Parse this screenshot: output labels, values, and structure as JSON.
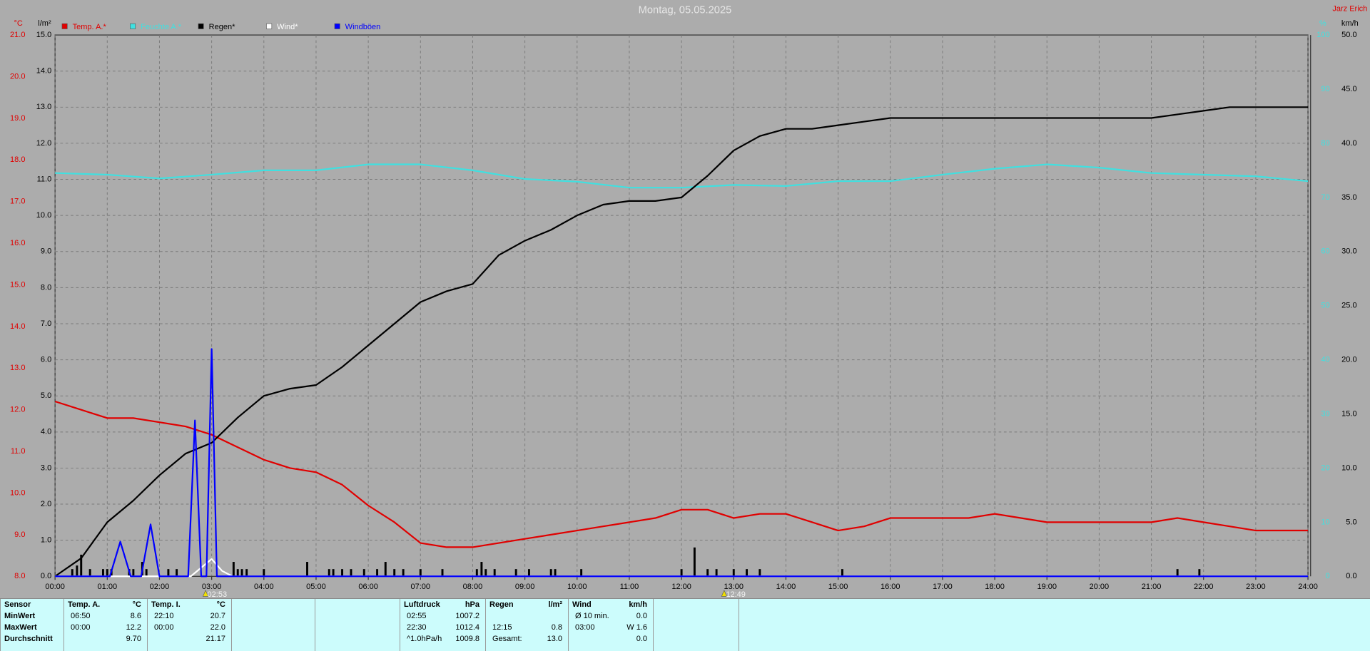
{
  "chart_data": {
    "type": "line",
    "title": "Montag, 05.05.2025",
    "author": "Jarz Erich",
    "xlim": [
      0,
      24
    ],
    "xticks": [
      {
        "value": 0,
        "label": "00:00"
      },
      {
        "value": 1,
        "label": "01:00"
      },
      {
        "value": 2,
        "label": "02:00"
      },
      {
        "value": 3,
        "label": "03:00"
      },
      {
        "value": 4,
        "label": "04:00"
      },
      {
        "value": 5,
        "label": "05:00"
      },
      {
        "value": 6,
        "label": "06:00"
      },
      {
        "value": 7,
        "label": "07:00"
      },
      {
        "value": 8,
        "label": "08:00"
      },
      {
        "value": 9,
        "label": "09:00"
      },
      {
        "value": 10,
        "label": "10:00"
      },
      {
        "value": 11,
        "label": "11:00"
      },
      {
        "value": 12,
        "label": "12:00"
      },
      {
        "value": 13,
        "label": "13:00"
      },
      {
        "value": 14,
        "label": "14:00"
      },
      {
        "value": 15,
        "label": "15:00"
      },
      {
        "value": 16,
        "label": "16:00"
      },
      {
        "value": 17,
        "label": "17:00"
      },
      {
        "value": 18,
        "label": "18:00"
      },
      {
        "value": 19,
        "label": "19:00"
      },
      {
        "value": 20,
        "label": "20:00"
      },
      {
        "value": 21,
        "label": "21:00"
      },
      {
        "value": 22,
        "label": "22:00"
      },
      {
        "value": 23,
        "label": "23:00"
      },
      {
        "value": 24,
        "label": "24:00"
      }
    ],
    "xgrid": true,
    "x": [
      0,
      0.5,
      1,
      1.5,
      2,
      2.5,
      3,
      3.5,
      4,
      4.5,
      5,
      5.5,
      6,
      6.5,
      7,
      7.5,
      8,
      8.5,
      9,
      9.5,
      10,
      10.5,
      11,
      11.5,
      12,
      12.5,
      13,
      13.5,
      14,
      14.5,
      15,
      15.5,
      16,
      16.5,
      17,
      17.5,
      18,
      18.5,
      19,
      19.5,
      20,
      20.5,
      21,
      21.5,
      22,
      22.5,
      23,
      23.5,
      24
    ],
    "axes": {
      "temp": {
        "label": "°C",
        "color": "#e00000",
        "side": "left",
        "lim": [
          8,
          21
        ],
        "ticks": [
          {
            "value": 8,
            "label": "8.0"
          },
          {
            "value": 9,
            "label": "9.0"
          },
          {
            "value": 10,
            "label": "10.0"
          },
          {
            "value": 11,
            "label": "11.0"
          },
          {
            "value": 12,
            "label": "12.0"
          },
          {
            "value": 13,
            "label": "13.0"
          },
          {
            "value": 14,
            "label": "14.0"
          },
          {
            "value": 15,
            "label": "15.0"
          },
          {
            "value": 16,
            "label": "16.0"
          },
          {
            "value": 17,
            "label": "17.0"
          },
          {
            "value": 18,
            "label": "18.0"
          },
          {
            "value": 19,
            "label": "19.0"
          },
          {
            "value": 20,
            "label": "20.0"
          },
          {
            "value": 21,
            "label": "21.0"
          }
        ]
      },
      "rain": {
        "label": "l/m²",
        "color": "#000000",
        "side": "left",
        "grid": true,
        "lim": [
          0,
          15
        ],
        "ticks": [
          {
            "value": 0,
            "label": "0.0"
          },
          {
            "value": 1,
            "label": "1.0"
          },
          {
            "value": 2,
            "label": "2.0"
          },
          {
            "value": 3,
            "label": "3.0"
          },
          {
            "value": 4,
            "label": "4.0"
          },
          {
            "value": 5,
            "label": "5.0"
          },
          {
            "value": 6,
            "label": "6.0"
          },
          {
            "value": 7,
            "label": "7.0"
          },
          {
            "value": 8,
            "label": "8.0"
          },
          {
            "value": 9,
            "label": "9.0"
          },
          {
            "value": 10,
            "label": "10.0"
          },
          {
            "value": 11,
            "label": "11.0"
          },
          {
            "value": 12,
            "label": "12.0"
          },
          {
            "value": 13,
            "label": "13.0"
          },
          {
            "value": 14,
            "label": "14.0"
          },
          {
            "value": 15,
            "label": "15.0"
          }
        ]
      },
      "hum": {
        "label": "%",
        "color": "#40e0e0",
        "side": "right",
        "lim": [
          0,
          100
        ],
        "ticks": [
          0,
          10,
          20,
          30,
          40,
          50,
          60,
          70,
          80,
          90,
          100
        ]
      },
      "wind": {
        "label": "km/h",
        "color": "#000000",
        "side": "right",
        "lim": [
          0,
          50
        ],
        "ticks": [
          {
            "value": 0,
            "label": "0.0"
          },
          {
            "value": 5,
            "label": "5.0"
          },
          {
            "value": 10,
            "label": "10.0"
          },
          {
            "value": 15,
            "label": "15.0"
          },
          {
            "value": 20,
            "label": "20.0"
          },
          {
            "value": 25,
            "label": "25.0"
          },
          {
            "value": 30,
            "label": "30.0"
          },
          {
            "value": 35,
            "label": "35.0"
          },
          {
            "value": 40,
            "label": "40.0"
          },
          {
            "value": 45,
            "label": "45.0"
          },
          {
            "value": 50,
            "label": "50.0"
          }
        ]
      }
    },
    "series": [
      {
        "name": "Temp. A.*",
        "type": "line",
        "axis": "temp",
        "color": "#e00000",
        "values": [
          12.2,
          12.0,
          11.8,
          11.8,
          11.7,
          11.6,
          11.4,
          11.1,
          10.8,
          10.6,
          10.5,
          10.2,
          9.7,
          9.3,
          8.8,
          8.7,
          8.7,
          8.8,
          8.9,
          9.0,
          9.1,
          9.2,
          9.3,
          9.4,
          9.6,
          9.6,
          9.4,
          9.5,
          9.5,
          9.3,
          9.1,
          9.2,
          9.4,
          9.4,
          9.4,
          9.4,
          9.5,
          9.4,
          9.3,
          9.3,
          9.3,
          9.3,
          9.3,
          9.4,
          9.3,
          9.2,
          9.1,
          9.1,
          9.1
        ]
      },
      {
        "name": "Feuchte A.*",
        "type": "line",
        "axis": "hum",
        "color": "#40e0e0",
        "x": [
          0,
          1,
          2,
          3,
          4,
          5,
          6,
          7,
          8,
          9,
          10,
          11,
          12,
          13,
          14,
          15,
          16,
          17,
          18,
          19,
          20,
          21,
          22,
          23,
          24
        ],
        "values": [
          74.5,
          74.2,
          73.5,
          74.2,
          75.0,
          75.0,
          76.1,
          76.1,
          75.0,
          73.4,
          72.9,
          71.8,
          71.8,
          72.3,
          72.1,
          73.0,
          73.0,
          74.2,
          75.3,
          76.1,
          75.5,
          74.5,
          74.2,
          73.9,
          73.0
        ]
      },
      {
        "name": "Regen*",
        "type": "line",
        "axis": "rain",
        "color": "#000000",
        "values": [
          0,
          0.5,
          1.5,
          2.1,
          2.8,
          3.4,
          3.7,
          4.4,
          5.0,
          5.2,
          5.3,
          5.8,
          6.4,
          7.0,
          7.6,
          7.9,
          8.1,
          8.9,
          9.3,
          9.6,
          10.0,
          10.3,
          10.4,
          10.4,
          10.5,
          11.1,
          11.8,
          12.2,
          12.4,
          12.4,
          12.5,
          12.6,
          12.7,
          12.7,
          12.7,
          12.7,
          12.7,
          12.7,
          12.7,
          12.7,
          12.7,
          12.7,
          12.7,
          12.8,
          12.9,
          13.0,
          13.0,
          13.0,
          13.0
        ]
      },
      {
        "name": "Wind*",
        "type": "line",
        "axis": "wind",
        "color": "#ffffff",
        "x": [
          0,
          2.6,
          2.8,
          3.0,
          3.2,
          3.4,
          24
        ],
        "values": [
          0,
          0,
          0.8,
          1.6,
          0.5,
          0,
          0
        ]
      },
      {
        "name": "Windböen",
        "type": "line",
        "axis": "wind",
        "color": "#0000ff",
        "x": [
          0,
          1.05,
          1.25,
          1.45,
          1.65,
          1.83,
          2.0,
          2.55,
          2.68,
          2.8,
          2.9,
          3.0,
          3.1,
          24
        ],
        "values": [
          0,
          0,
          3.2,
          0,
          0,
          4.8,
          0,
          0,
          14.4,
          0,
          0,
          21.0,
          0,
          0
        ]
      },
      {
        "type": "bar",
        "axis": "rain",
        "color": "#000000",
        "x": [
          0.33,
          0.42,
          0.5,
          0.67,
          0.92,
          1.0,
          1.08,
          1.42,
          1.5,
          1.67,
          1.75,
          2.17,
          2.33,
          3.42,
          3.5,
          3.58,
          3.67,
          4.0,
          4.83,
          5.25,
          5.33,
          5.5,
          5.67,
          5.92,
          6.17,
          6.33,
          6.5,
          6.67,
          7.0,
          7.42,
          8.08,
          8.17,
          8.25,
          8.42,
          8.83,
          9.08,
          9.5,
          9.58,
          10.08,
          12.0,
          12.25,
          12.5,
          12.67,
          13.0,
          13.25,
          13.5,
          15.08,
          21.5,
          21.92
        ],
        "values": [
          0.2,
          0.3,
          0.6,
          0.2,
          0.2,
          0.2,
          0.2,
          0.2,
          0.2,
          0.4,
          0.2,
          0.2,
          0.2,
          0.4,
          0.2,
          0.2,
          0.2,
          0.2,
          0.4,
          0.2,
          0.2,
          0.2,
          0.2,
          0.2,
          0.2,
          0.4,
          0.2,
          0.2,
          0.2,
          0.2,
          0.2,
          0.4,
          0.2,
          0.2,
          0.2,
          0.2,
          0.2,
          0.2,
          0.2,
          0.2,
          0.8,
          0.2,
          0.2,
          0.2,
          0.2,
          0.2,
          0.2,
          0.2,
          0.2
        ]
      }
    ],
    "annotations": [
      {
        "x": 2.883,
        "label": "02:53"
      },
      {
        "x": 12.817,
        "label": "12:49"
      }
    ]
  },
  "table": {
    "header": [
      [
        "Sensor"
      ],
      [
        "Temp. A.",
        "°C"
      ],
      [
        "Temp. I.",
        "°C"
      ],
      [
        "Luftdruck",
        "hPa"
      ],
      [
        "Regen",
        "l/m²"
      ],
      [
        "Wind",
        "km/h"
      ]
    ],
    "rows": [
      [
        [
          "MinWert"
        ],
        [
          "06:50",
          "8.6"
        ],
        [
          "22:10",
          "20.7"
        ],
        [
          "02:55",
          "1007.2"
        ],
        null,
        [
          "Ø 10 min.",
          "0.0"
        ]
      ],
      [
        [
          "MaxWert"
        ],
        [
          "00:00",
          "12.2"
        ],
        [
          "00:00",
          "22.0"
        ],
        [
          "22:30",
          "1012.4"
        ],
        [
          "12:15",
          "0.8"
        ],
        [
          "03:00",
          "W 1.6"
        ]
      ],
      [
        [
          "Durchschnitt"
        ],
        [
          null,
          "9.70"
        ],
        [
          null,
          "21.17"
        ],
        [
          "^1.0hPa/h",
          "1009.8"
        ],
        [
          "Gesamt:",
          "13.0"
        ],
        [
          null,
          "0.0"
        ]
      ]
    ]
  }
}
